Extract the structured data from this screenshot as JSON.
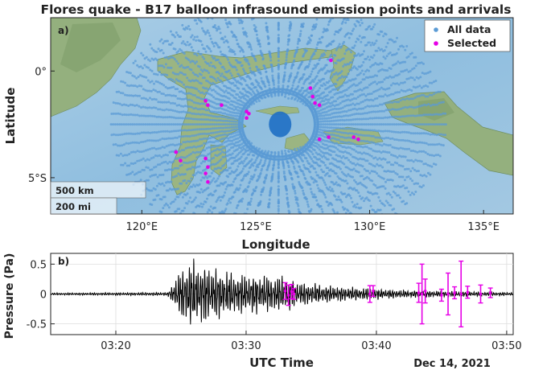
{
  "figure": {
    "title": "Flores quake - B17 balloon infrasound emission points and arrivals"
  },
  "chart_data": [
    {
      "type": "scatter",
      "panel_label": "a)",
      "xlabel": "Longitude",
      "ylabel": "Latitude",
      "xlim_deg_east": [
        116.0,
        136.3
      ],
      "ylim_deg_north": [
        -6.7,
        2.5
      ],
      "x_ticks": [
        {
          "value": 120,
          "label": "120°E"
        },
        {
          "value": 125,
          "label": "125°E"
        },
        {
          "value": 130,
          "label": "130°E"
        },
        {
          "value": 135,
          "label": "135°E"
        }
      ],
      "y_ticks": [
        {
          "value": 0,
          "label": "0°"
        },
        {
          "value": -5,
          "label": "5°S"
        }
      ],
      "legend": {
        "placement": "top-right",
        "entries": [
          {
            "label": "All data",
            "color": "#5b9bd5"
          },
          {
            "label": "Selected",
            "color": "#e600e6"
          }
        ]
      },
      "scale_bars": [
        "500 km",
        "200 mi"
      ],
      "basemap": "shaded relief, Sulawesi / Banda Sea region",
      "all_data": {
        "name": "All data",
        "pattern": "radial spokes and ring around source",
        "center_lon": 126.0,
        "center_lat": -2.5,
        "spokes": 72,
        "spoke_radius_range_deg": [
          1.6,
          7.0
        ],
        "ring_radius_deg": 1.45
      },
      "selected_points": [
        {
          "lon": 122.8,
          "lat": -1.4
        },
        {
          "lon": 122.9,
          "lat": -1.6
        },
        {
          "lon": 123.5,
          "lat": -1.6
        },
        {
          "lon": 124.6,
          "lat": -1.9
        },
        {
          "lon": 124.7,
          "lat": -2.0
        },
        {
          "lon": 124.6,
          "lat": -2.2
        },
        {
          "lon": 127.4,
          "lat": -0.8
        },
        {
          "lon": 127.5,
          "lat": -1.2
        },
        {
          "lon": 127.6,
          "lat": -1.5
        },
        {
          "lon": 127.8,
          "lat": -1.6
        },
        {
          "lon": 128.3,
          "lat": 0.5
        },
        {
          "lon": 127.8,
          "lat": -3.2
        },
        {
          "lon": 128.2,
          "lat": -3.1
        },
        {
          "lon": 129.3,
          "lat": -3.1
        },
        {
          "lon": 129.5,
          "lat": -3.2
        },
        {
          "lon": 121.5,
          "lat": -3.8
        },
        {
          "lon": 121.7,
          "lat": -4.2
        },
        {
          "lon": 122.8,
          "lat": -4.1
        },
        {
          "lon": 122.9,
          "lat": -4.5
        },
        {
          "lon": 122.8,
          "lat": -4.8
        },
        {
          "lon": 122.9,
          "lat": -5.2
        }
      ]
    },
    {
      "type": "line",
      "panel_label": "b)",
      "xlabel": "UTC Time",
      "ylabel": "Pressure (Pa)",
      "date_label": "Dec 14, 2021",
      "xlim_utc": [
        "03:15",
        "03:50:30"
      ],
      "ylim_pa": [
        -0.68,
        0.68
      ],
      "x_ticks": [
        "03:20",
        "03:30",
        "03:40",
        "03:50"
      ],
      "y_ticks": [
        {
          "value": 0.5,
          "label": "0.5"
        },
        {
          "value": 0,
          "label": "0"
        },
        {
          "value": -0.5,
          "label": "-0.5"
        }
      ],
      "series": [
        {
          "color": "#000000",
          "envelope": [
            {
              "t": "03:15",
              "amp": 0.02
            },
            {
              "t": "03:24",
              "amp": 0.03
            },
            {
              "t": "03:24:30",
              "amp": 0.25
            },
            {
              "t": "03:25:30",
              "amp": 0.62
            },
            {
              "t": "03:27",
              "amp": 0.52
            },
            {
              "t": "03:29",
              "amp": 0.38
            },
            {
              "t": "03:33",
              "amp": 0.32
            },
            {
              "t": "03:34",
              "amp": 0.22
            },
            {
              "t": "03:37",
              "amp": 0.14
            },
            {
              "t": "03:42",
              "amp": 0.07
            },
            {
              "t": "03:50",
              "amp": 0.03
            }
          ]
        }
      ],
      "selected_arrivals": {
        "color": "#e600e6",
        "points": [
          {
            "t": "03:33:00",
            "y": 0.05,
            "err": 0.14
          },
          {
            "t": "03:33:15",
            "y": -0.02,
            "err": 0.17
          },
          {
            "t": "03:33:30",
            "y": 0.04,
            "err": 0.12
          },
          {
            "t": "03:33:40",
            "y": 0.0,
            "err": 0.09
          },
          {
            "t": "03:39:30",
            "y": 0.0,
            "err": 0.14
          },
          {
            "t": "03:39:45",
            "y": 0.05,
            "err": 0.09
          },
          {
            "t": "03:43:15",
            "y": 0.02,
            "err": 0.16
          },
          {
            "t": "03:43:30",
            "y": 0.0,
            "err": 0.5
          },
          {
            "t": "03:43:45",
            "y": 0.05,
            "err": 0.2
          },
          {
            "t": "03:45",
            "y": -0.02,
            "err": 0.1
          },
          {
            "t": "03:45:30",
            "y": 0.0,
            "err": 0.35
          },
          {
            "t": "03:46",
            "y": 0.02,
            "err": 0.1
          },
          {
            "t": "03:46:30",
            "y": 0.0,
            "err": 0.55
          },
          {
            "t": "03:47",
            "y": 0.03,
            "err": 0.1
          },
          {
            "t": "03:48",
            "y": 0.0,
            "err": 0.15
          },
          {
            "t": "03:48:45",
            "y": 0.02,
            "err": 0.08
          }
        ]
      }
    }
  ]
}
